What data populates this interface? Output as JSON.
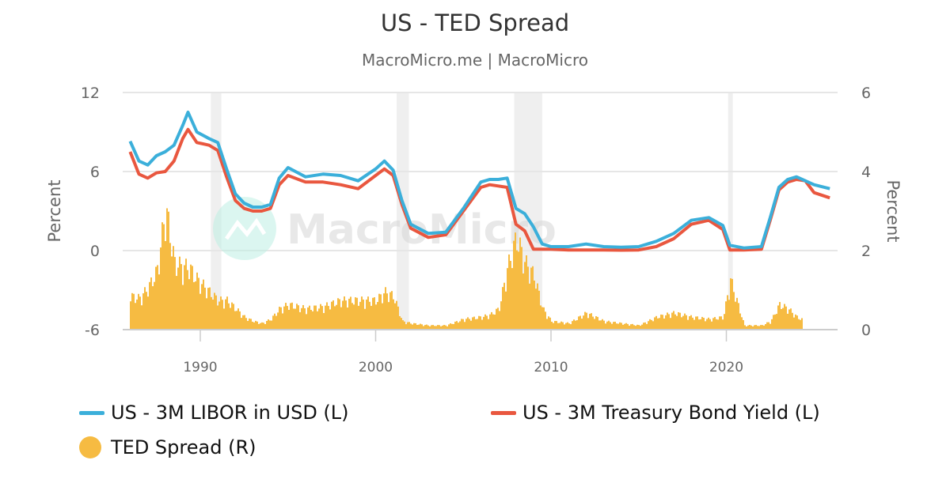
{
  "title": "US - TED Spread",
  "subtitle": "MacroMicro.me | MacroMicro",
  "watermark": "MacroMicro",
  "colors": {
    "libor": "#3BAFDA",
    "treasury": "#E9573F",
    "ted": "#F6BB42",
    "grid": "#E6E6E6",
    "recession": "#EFEFEF",
    "axis_text": "#666666"
  },
  "axes": {
    "left": {
      "label": "Percent",
      "ticks": [
        "12",
        "6",
        "0",
        "-6"
      ]
    },
    "right": {
      "label": "Percent",
      "ticks": [
        "6",
        "4",
        "2",
        "0"
      ]
    },
    "x": {
      "ticks": [
        "1990",
        "2000",
        "2010",
        "2020"
      ]
    }
  },
  "legend": [
    {
      "label": "US - 3M LIBOR in USD (L)",
      "color": "#3BAFDA",
      "shape": "line"
    },
    {
      "label": "US - 3M Treasury Bond Yield (L)",
      "color": "#E9573F",
      "shape": "line"
    },
    {
      "label": "TED Spread (R)",
      "color": "#F6BB42",
      "shape": "circle"
    }
  ],
  "chart_data": {
    "type": "line",
    "title": "US - TED Spread",
    "subtitle": "MacroMicro.me | MacroMicro",
    "xlabel": "",
    "ylabel_left": "Percent",
    "ylabel_right": "Percent",
    "ylim_left": [
      -6,
      12
    ],
    "ylim_right": [
      0,
      6
    ],
    "xlim": [
      1986,
      2026
    ],
    "grid": true,
    "legend_position": "bottom",
    "recession_bands": [
      [
        1990.6,
        1991.2
      ],
      [
        2001.2,
        2001.9
      ],
      [
        2007.9,
        2009.5
      ],
      [
        2020.1,
        2020.3
      ]
    ],
    "x": [
      1986.0,
      1986.5,
      1987.0,
      1987.5,
      1988.0,
      1988.5,
      1989.0,
      1989.3,
      1989.8,
      1990.5,
      1991.0,
      1991.5,
      1992.0,
      1992.5,
      1993.0,
      1993.5,
      1994.0,
      1994.5,
      1995.0,
      1996.0,
      1997.0,
      1998.0,
      1999.0,
      2000.0,
      2000.5,
      2001.0,
      2001.5,
      2002.0,
      2003.0,
      2004.0,
      2005.0,
      2006.0,
      2006.5,
      2007.0,
      2007.5,
      2008.0,
      2008.5,
      2009.0,
      2009.5,
      2010.0,
      2011.0,
      2012.0,
      2013.0,
      2014.0,
      2015.0,
      2016.0,
      2017.0,
      2018.0,
      2019.0,
      2019.8,
      2020.2,
      2021.0,
      2022.0,
      2022.5,
      2023.0,
      2023.5,
      2024.0,
      2024.5,
      2025.0,
      2025.9
    ],
    "series": [
      {
        "name": "US - 3M LIBOR in USD (L)",
        "axis": "left",
        "color": "#3BAFDA",
        "values": [
          8.3,
          6.8,
          6.5,
          7.2,
          7.5,
          8.0,
          9.5,
          10.5,
          9.0,
          8.5,
          8.2,
          6.2,
          4.3,
          3.6,
          3.3,
          3.3,
          3.5,
          5.5,
          6.3,
          5.6,
          5.8,
          5.7,
          5.3,
          6.2,
          6.8,
          6.1,
          3.8,
          2.0,
          1.3,
          1.4,
          3.2,
          5.2,
          5.4,
          5.4,
          5.5,
          3.2,
          2.8,
          1.8,
          0.5,
          0.3,
          0.3,
          0.5,
          0.3,
          0.25,
          0.3,
          0.7,
          1.3,
          2.3,
          2.5,
          1.9,
          0.4,
          0.2,
          0.3,
          2.5,
          4.8,
          5.4,
          5.6,
          5.3,
          5.0,
          4.7
        ]
      },
      {
        "name": "US - 3M Treasury Bond Yield (L)",
        "axis": "left",
        "color": "#E9573F",
        "values": [
          7.5,
          5.8,
          5.5,
          5.9,
          6.0,
          6.8,
          8.5,
          9.2,
          8.2,
          8.0,
          7.6,
          5.6,
          3.8,
          3.2,
          3.0,
          3.0,
          3.2,
          5.0,
          5.7,
          5.2,
          5.2,
          5.0,
          4.7,
          5.7,
          6.2,
          5.7,
          3.5,
          1.7,
          1.0,
          1.2,
          3.0,
          4.8,
          5.0,
          4.9,
          4.8,
          2.0,
          1.5,
          0.1,
          0.1,
          0.1,
          0.05,
          0.05,
          0.05,
          0.03,
          0.05,
          0.3,
          0.9,
          2.0,
          2.3,
          1.6,
          0.05,
          0.05,
          0.1,
          2.3,
          4.6,
          5.2,
          5.4,
          5.3,
          4.4,
          4.0
        ]
      },
      {
        "name": "TED Spread (R)",
        "axis": "right",
        "type": "bar",
        "color": "#F6BB42",
        "values": [
          0.8,
          0.75,
          1.0,
          1.4,
          2.9,
          1.6,
          1.5,
          1.5,
          1.2,
          0.9,
          0.7,
          0.7,
          0.5,
          0.3,
          0.2,
          0.15,
          0.25,
          0.5,
          0.6,
          0.5,
          0.55,
          0.7,
          0.7,
          0.7,
          0.9,
          0.8,
          0.2,
          0.15,
          0.1,
          0.1,
          0.25,
          0.3,
          0.35,
          0.5,
          1.5,
          2.2,
          1.6,
          1.3,
          0.5,
          0.2,
          0.15,
          0.4,
          0.2,
          0.15,
          0.1,
          0.3,
          0.4,
          0.3,
          0.25,
          0.3,
          1.2,
          0.1,
          0.1,
          0.2,
          0.6,
          0.5,
          0.3,
          0.2,
          null,
          null
        ]
      }
    ]
  }
}
